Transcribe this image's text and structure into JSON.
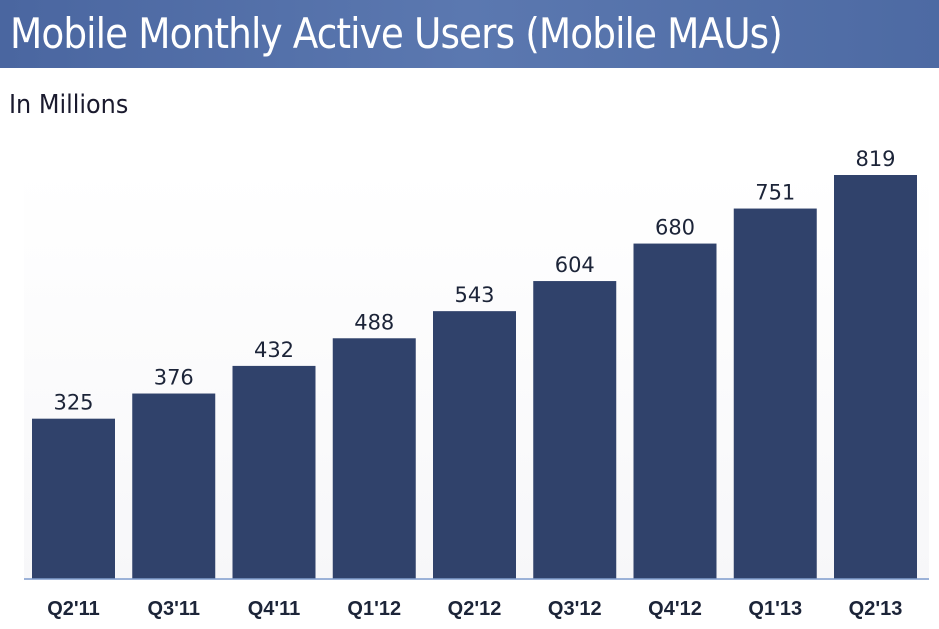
{
  "header": {
    "title": "Mobile Monthly Active Users (Mobile MAUs)",
    "subtitle": "In Millions"
  },
  "colors": {
    "header_bg": "#4f6ca5",
    "bar": "#30426b",
    "axis": "#7f9ccd"
  },
  "chart_data": {
    "type": "bar",
    "title": "Mobile Monthly Active Users (Mobile MAUs)",
    "subtitle": "In Millions",
    "xlabel": "",
    "ylabel": "",
    "categories": [
      "Q2'11",
      "Q3'11",
      "Q4'11",
      "Q1'12",
      "Q2'12",
      "Q3'12",
      "Q4'12",
      "Q1'13",
      "Q2'13"
    ],
    "values": [
      325,
      376,
      432,
      488,
      543,
      604,
      680,
      751,
      819
    ],
    "ylim": [
      0,
      819
    ],
    "grid": false,
    "legend": "none",
    "data_labels": true
  }
}
